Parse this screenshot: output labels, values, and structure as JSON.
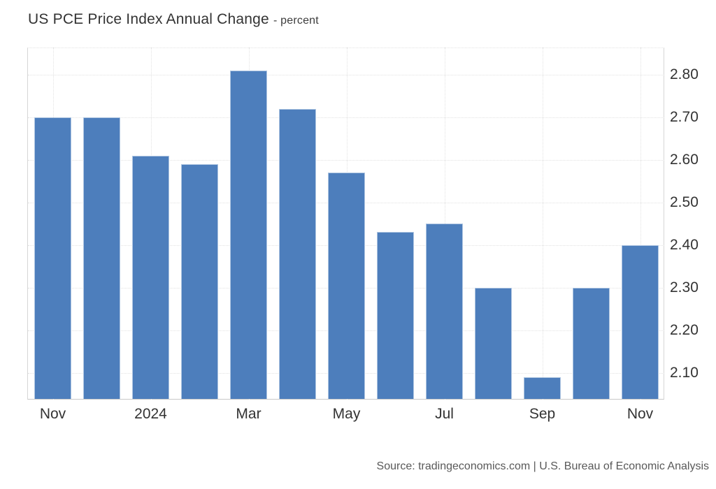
{
  "header": {
    "title": "US PCE Price Index Annual Change",
    "subtitle": "- percent"
  },
  "footer": {
    "source": "Source: tradingeconomics.com | U.S. Bureau of Economic Analysis"
  },
  "chart_data": {
    "type": "bar",
    "title": "US PCE Price Index Annual Change",
    "unit_label": "percent",
    "values": [
      2.7,
      2.7,
      2.61,
      2.59,
      2.81,
      2.72,
      2.57,
      2.43,
      2.45,
      2.3,
      2.09,
      2.3,
      2.4
    ],
    "bar_count": 13,
    "x_tick_labels": [
      "Nov",
      "2024",
      "Mar",
      "May",
      "Jul",
      "Sep",
      "Nov"
    ],
    "x_tick_bar_indices": [
      0,
      2,
      4,
      6,
      8,
      10,
      12
    ],
    "y_tick_labels": [
      "2.80",
      "2.70",
      "2.60",
      "2.50",
      "2.40",
      "2.30",
      "2.20",
      "2.10"
    ],
    "y_tick_values": [
      2.8,
      2.7,
      2.6,
      2.5,
      2.4,
      2.3,
      2.2,
      2.1
    ],
    "ylim": [
      2.037,
      2.864
    ],
    "grid": true,
    "legend_position": "none",
    "bar_color": "#4d7ebc",
    "grid_color": "#e2e2e2",
    "axis_text_color": "#333333",
    "source_text_color": "#595959"
  }
}
